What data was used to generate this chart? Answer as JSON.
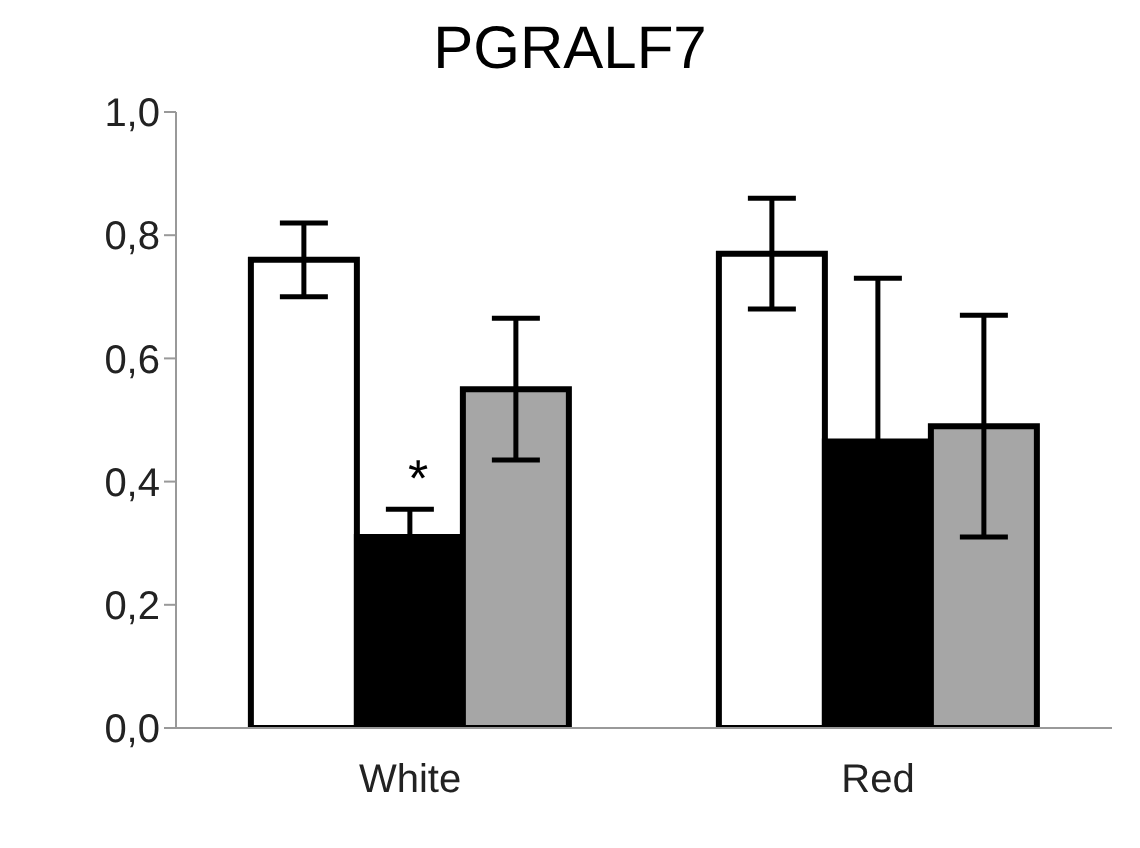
{
  "chart_data": {
    "type": "bar",
    "title": "PGRALF7",
    "categories": [
      "White",
      "Red"
    ],
    "series": [
      {
        "color": "#ffffff",
        "values": [
          0.76,
          0.77
        ],
        "errors": [
          0.06,
          0.09
        ]
      },
      {
        "color": "#000000",
        "values": [
          0.31,
          0.465
        ],
        "errors": [
          0.045,
          0.265
        ]
      },
      {
        "color": "#a6a6a6",
        "values": [
          0.55,
          0.49
        ],
        "errors": [
          0.115,
          0.18
        ]
      }
    ],
    "ylim": [
      0,
      1
    ],
    "yticks": [
      {
        "value": 0,
        "label": "0,0"
      },
      {
        "value": 0.2,
        "label": "0,2"
      },
      {
        "value": 0.4,
        "label": "0,4"
      },
      {
        "value": 0.6,
        "label": "0,6"
      },
      {
        "value": 0.8,
        "label": "0,8"
      },
      {
        "value": 1,
        "label": "1,0"
      }
    ],
    "grid": false,
    "legend": false,
    "annotations": [
      "*"
    ]
  }
}
